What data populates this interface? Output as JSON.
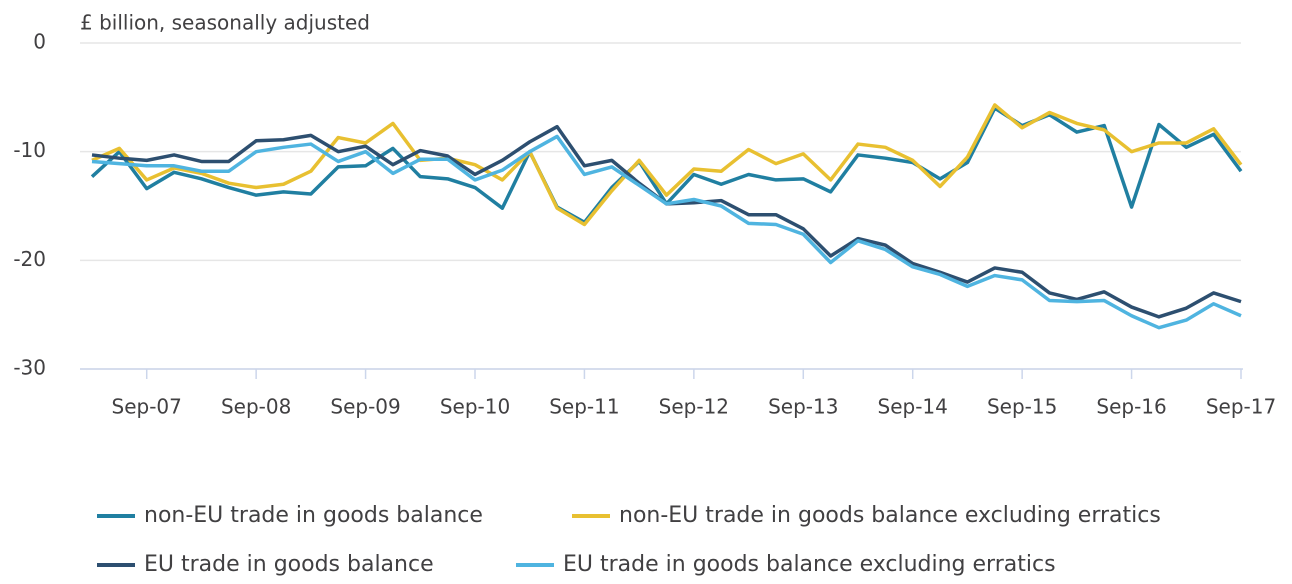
{
  "chart_data": {
    "type": "line",
    "y_axis_label": "£ billion, seasonally adjusted",
    "categories": [
      null,
      null,
      "Sep-07",
      null,
      null,
      null,
      "Sep-08",
      null,
      null,
      null,
      "Sep-09",
      null,
      null,
      null,
      "Sep-10",
      null,
      null,
      null,
      "Sep-11",
      null,
      null,
      null,
      "Sep-12",
      null,
      null,
      null,
      "Sep-13",
      null,
      null,
      null,
      "Sep-14",
      null,
      null,
      null,
      "Sep-15",
      null,
      null,
      null,
      "Sep-16",
      null,
      null,
      null,
      "Sep-17"
    ],
    "ylim": [
      -30,
      0
    ],
    "yticks": [
      0,
      -10,
      -20,
      -30
    ],
    "grid": true,
    "series": [
      {
        "name": "non-EU trade in goods balance",
        "color": "#207fa1",
        "values": [
          -12.3,
          -10.0,
          -13.4,
          -11.9,
          -12.5,
          -13.3,
          -14.0,
          -13.7,
          -13.9,
          -11.4,
          -11.3,
          -9.7,
          -12.3,
          -12.5,
          -13.3,
          -15.2,
          -10.0,
          -15.1,
          -16.5,
          -13.3,
          -10.9,
          -14.8,
          -12.1,
          -13.0,
          -12.1,
          -12.6,
          -12.5,
          -13.7,
          -10.3,
          -10.6,
          -11.0,
          -12.5,
          -11.0,
          -6.0,
          -7.6,
          -6.6,
          -8.2,
          -7.6,
          -15.1,
          -7.5,
          -9.6,
          -8.4,
          -11.8
        ]
      },
      {
        "name": "non-EU trade in goods balance excluding erratics",
        "color": "#e8c031",
        "values": [
          -10.8,
          -9.7,
          -12.6,
          -11.5,
          -12.0,
          -12.9,
          -13.3,
          -13.0,
          -11.8,
          -8.7,
          -9.2,
          -7.4,
          -10.8,
          -10.6,
          -11.2,
          -12.6,
          -10.0,
          -15.2,
          -16.7,
          -13.6,
          -10.8,
          -14.0,
          -11.6,
          -11.8,
          -9.8,
          -11.1,
          -10.2,
          -12.6,
          -9.3,
          -9.6,
          -10.8,
          -13.2,
          -10.5,
          -5.7,
          -7.8,
          -6.4,
          -7.4,
          -8.0,
          -10.0,
          -9.2,
          -9.2,
          -7.9,
          -11.2
        ]
      },
      {
        "name": "EU trade in goods balance",
        "color": "#2d4f70",
        "values": [
          -10.3,
          -10.6,
          -10.8,
          -10.3,
          -10.9,
          -10.9,
          -9.0,
          -8.9,
          -8.5,
          -10.0,
          -9.5,
          -11.2,
          -9.9,
          -10.4,
          -12.1,
          -10.8,
          -9.1,
          -7.7,
          -11.3,
          -10.8,
          -12.9,
          -14.8,
          -14.7,
          -14.5,
          -15.8,
          -15.8,
          -17.1,
          -19.6,
          -18.0,
          -18.6,
          -20.3,
          -21.1,
          -22.0,
          -20.7,
          -21.1,
          -23.0,
          -23.6,
          -22.9,
          -24.3,
          -25.2,
          -24.4,
          -23.0,
          -23.8
        ]
      },
      {
        "name": "EU trade in goods balance excluding erratics",
        "color": "#4fb4e0",
        "values": [
          -10.9,
          -11.1,
          -11.3,
          -11.3,
          -11.8,
          -11.8,
          -10.0,
          -9.6,
          -9.3,
          -10.9,
          -10.0,
          -12.0,
          -10.7,
          -10.7,
          -12.6,
          -11.7,
          -10.0,
          -8.6,
          -12.1,
          -11.4,
          -13.1,
          -14.8,
          -14.4,
          -15.0,
          -16.6,
          -16.7,
          -17.6,
          -20.2,
          -18.2,
          -19.0,
          -20.6,
          -21.3,
          -22.4,
          -21.4,
          -21.8,
          -23.7,
          -23.8,
          -23.7,
          -25.1,
          -26.2,
          -25.5,
          -24.0,
          -25.1
        ]
      }
    ]
  }
}
